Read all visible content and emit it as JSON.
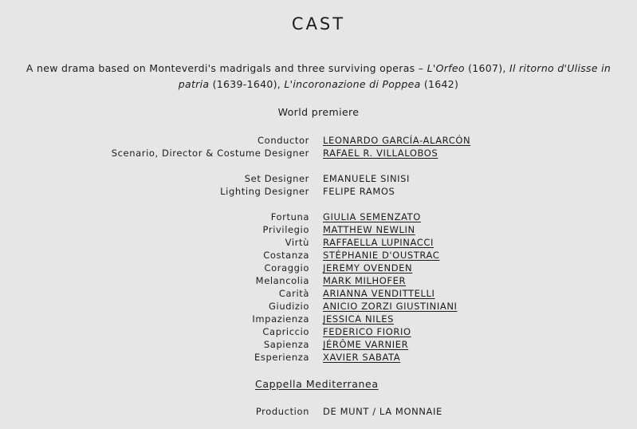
{
  "title": "CAST",
  "description": {
    "intro": "A new drama based on Monteverdi's madrigals and three surviving operas – ",
    "work1": "L'Orfeo",
    "year1": " (1607), ",
    "work2": "Il ritorno d'Ulisse in patria",
    "year2": " (1639-1640), ",
    "work3": "L'incoronazione di Poppea",
    "year3": " (1642)"
  },
  "premiere": "World premiere",
  "groups": [
    [
      {
        "role": "Conductor",
        "name": "LEONARDO GARCÍA-ALARCÓN",
        "link": true
      },
      {
        "role": "Scenario, Director & Costume Designer",
        "name": "RAFAEL R. VILLALOBOS",
        "link": true
      }
    ],
    [
      {
        "role": "Set Designer",
        "name": "EMANUELE SINISI",
        "link": false
      },
      {
        "role": "Lighting Designer",
        "name": "FELIPE RAMOS",
        "link": false
      }
    ],
    [
      {
        "role": "Fortuna",
        "name": "GIULIA SEMENZATO",
        "link": true
      },
      {
        "role": "Privilegio",
        "name": "MATTHEW NEWLIN",
        "link": true
      },
      {
        "role": "Virtù",
        "name": "RAFFAELLA LUPINACCI",
        "link": true
      },
      {
        "role": "Costanza",
        "name": "STÉPHANIE D'OUSTRAC",
        "link": true
      },
      {
        "role": "Coraggio",
        "name": "JEREMY OVENDEN",
        "link": true
      },
      {
        "role": "Melancolia",
        "name": "MARK MILHOFER",
        "link": true
      },
      {
        "role": "Carità",
        "name": "ARIANNA VENDITTELLI",
        "link": true
      },
      {
        "role": "Giudizio",
        "name": "ANICIO ZORZI GIUSTINIANI",
        "link": true
      },
      {
        "role": "Impazienza",
        "name": "JESSICA NILES",
        "link": true
      },
      {
        "role": "Capriccio",
        "name": "FEDERICO FIORIO",
        "link": true
      },
      {
        "role": "Sapienza",
        "name": "JÉRÔME VARNIER",
        "link": true
      },
      {
        "role": "Esperienza",
        "name": "XAVIER SABATA",
        "link": true
      }
    ]
  ],
  "ensemble": "Cappella Mediterranea",
  "production": {
    "role": "Production",
    "name": "DE MUNT / LA MONNAIE"
  }
}
